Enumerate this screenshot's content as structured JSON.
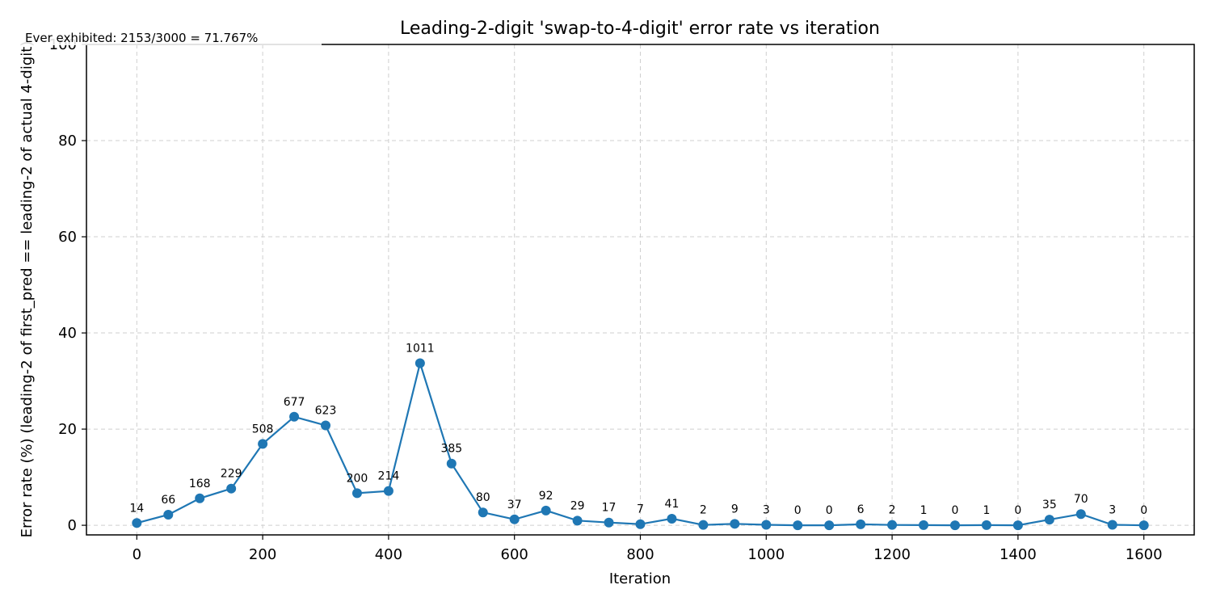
{
  "chart_data": {
    "type": "line",
    "title": "Leading-2-digit 'swap-to-4-digit' error rate vs iteration",
    "xlabel": "Iteration",
    "ylabel": "Error rate (%)   (leading-2 of first_pred == leading-2 of actual 4-digit)",
    "annotation": "Ever exhibited: 2153/3000 = 71.767%",
    "xlim": [
      -80,
      1680
    ],
    "ylim": [
      -2,
      100
    ],
    "xticks": [
      0,
      200,
      400,
      600,
      800,
      1000,
      1200,
      1400,
      1600
    ],
    "yticks": [
      0,
      20,
      40,
      60,
      80,
      100
    ],
    "grid": true,
    "color": "#1f77b4",
    "series": [
      {
        "x": [
          0,
          50,
          100,
          150,
          200,
          250,
          300,
          350,
          400,
          450,
          500,
          550,
          600,
          650,
          700,
          750,
          800,
          850,
          900,
          950,
          1000,
          1050,
          1100,
          1150,
          1200,
          1250,
          1300,
          1350,
          1400,
          1450,
          1500,
          1550,
          1600
        ],
        "values": [
          0.47,
          2.2,
          5.6,
          7.63,
          16.93,
          22.57,
          20.77,
          6.67,
          7.13,
          33.7,
          12.83,
          2.67,
          1.23,
          3.07,
          0.97,
          0.57,
          0.23,
          1.37,
          0.07,
          0.3,
          0.1,
          0.0,
          0.0,
          0.2,
          0.07,
          0.03,
          0.0,
          0.03,
          0.0,
          1.17,
          2.33,
          0.1,
          0.0
        ],
        "labels": [
          "14",
          "66",
          "168",
          "229",
          "508",
          "677",
          "623",
          "200",
          "214",
          "1011",
          "385",
          "80",
          "37",
          "92",
          "29",
          "17",
          "7",
          "41",
          "2",
          "9",
          "3",
          "0",
          "0",
          "6",
          "2",
          "1",
          "0",
          "1",
          "0",
          "35",
          "70",
          "3",
          "0"
        ]
      }
    ]
  }
}
